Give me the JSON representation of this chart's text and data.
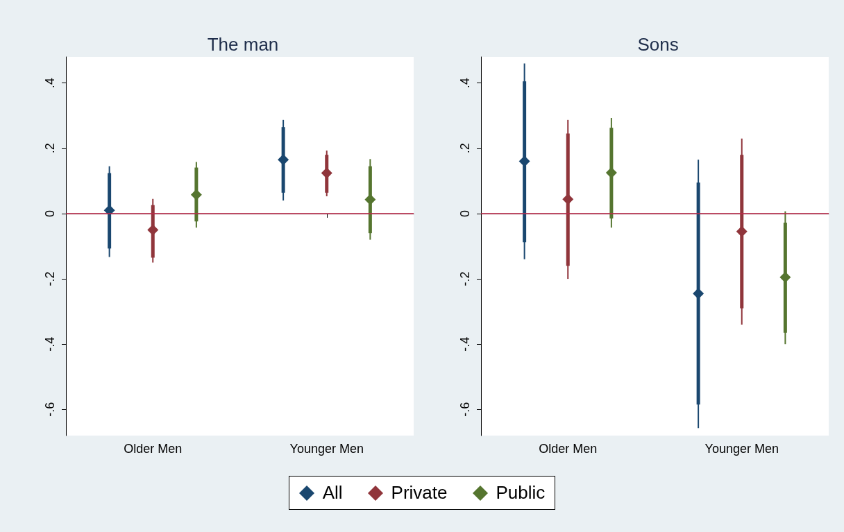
{
  "chart_data": [
    {
      "type": "box",
      "title": "The man",
      "categories": [
        "Older Men",
        "Younger Men"
      ],
      "ylim": [
        -0.68,
        0.48
      ],
      "yticks": [
        {
          "value": -0.6,
          "label": "-.6"
        },
        {
          "value": -0.4,
          "label": "-.4"
        },
        {
          "value": -0.2,
          "label": "-.2"
        },
        0,
        {
          "value": 0.2,
          "label": ".2"
        },
        {
          "value": 0.4,
          "label": ".4"
        }
      ],
      "grid": false,
      "legend": "bottom",
      "marker": "diamond",
      "ref_lines": [
        {
          "axis": "y",
          "value": 0,
          "color": "#c0294b"
        }
      ],
      "series": [
        {
          "name": "All",
          "color": "#1a476f",
          "boxes": [
            {
              "low": -0.133,
              "q1": -0.107,
              "median": 0.01,
              "q3": 0.124,
              "high": 0.145
            },
            {
              "low": 0.04,
              "q1": 0.064,
              "median": 0.165,
              "q3": 0.265,
              "high": 0.287
            }
          ]
        },
        {
          "name": "Private",
          "color": "#90353b",
          "boxes": [
            {
              "low": -0.15,
              "q1": -0.135,
              "median": -0.05,
              "q3": 0.026,
              "high": 0.045
            },
            {
              "low": 0.053,
              "q1": 0.064,
              "median": 0.124,
              "q3": 0.18,
              "high": 0.193
            }
          ]
        },
        {
          "name": "Public",
          "color": "#55752f",
          "boxes": [
            {
              "low": -0.043,
              "q1": -0.024,
              "median": 0.058,
              "q3": 0.141,
              "high": 0.158
            },
            {
              "low": -0.08,
              "q1": -0.06,
              "median": 0.043,
              "q3": 0.145,
              "high": 0.167
            }
          ]
        }
      ]
    },
    {
      "type": "box",
      "title": "Sons",
      "categories": [
        "Older Men",
        "Younger Men"
      ],
      "ylim": [
        -0.68,
        0.48
      ],
      "yticks": [
        {
          "value": -0.6,
          "label": "-.6"
        },
        {
          "value": -0.4,
          "label": "-.4"
        },
        {
          "value": -0.2,
          "label": "-.2"
        },
        0,
        {
          "value": 0.2,
          "label": ".2"
        },
        {
          "value": 0.4,
          "label": ".4"
        }
      ],
      "grid": false,
      "marker": "diamond",
      "ref_lines": [
        {
          "axis": "y",
          "value": 0,
          "color": "#c0294b"
        }
      ],
      "series": [
        {
          "color": "#1a476f",
          "boxes": [
            {
              "low": -0.14,
              "q1": -0.088,
              "median": 0.16,
              "q3": 0.405,
              "high": 0.46
            },
            {
              "low": -0.657,
              "q1": -0.585,
              "median": -0.245,
              "q3": 0.095,
              "high": 0.165
            }
          ]
        },
        {
          "color": "#90353b",
          "boxes": [
            {
              "low": -0.2,
              "q1": -0.16,
              "median": 0.044,
              "q3": 0.245,
              "high": 0.287
            },
            {
              "low": -0.34,
              "q1": -0.29,
              "median": -0.055,
              "q3": 0.18,
              "high": 0.23
            }
          ]
        },
        {
          "color": "#55752f",
          "boxes": [
            {
              "low": -0.043,
              "q1": -0.015,
              "median": 0.125,
              "q3": 0.263,
              "high": 0.293
            },
            {
              "low": -0.4,
              "q1": -0.365,
              "median": -0.195,
              "q3": -0.028,
              "high": 0.007
            }
          ]
        }
      ]
    }
  ]
}
